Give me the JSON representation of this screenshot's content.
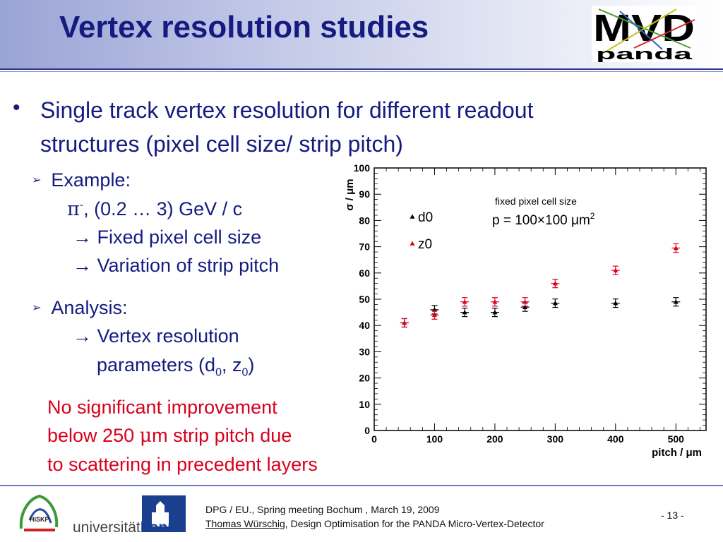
{
  "slide": {
    "title": "Vertex resolution studies",
    "bullet_char": "•",
    "main_line1": "Single track vertex resolution for different readout",
    "main_line2": "structures (pixel cell size/ strip pitch)",
    "example_label": "Example:",
    "example_particle_sym": "π",
    "example_particle_sup": "-",
    "example_particle_rest": ", (0.2 … 3) GeV / c",
    "example_arrow1": "→ Fixed pixel cell size",
    "example_arrow2": "→ Variation of strip pitch",
    "analysis_label": "Analysis:",
    "analysis_arrow1": "→ Vertex resolution",
    "analysis_line2_pre": "parameters (d",
    "analysis_sub0a": "0",
    "analysis_mid": ", z",
    "analysis_sub0b": "0",
    "analysis_end": ")",
    "conclusion_line1": "No significant improvement",
    "conclusion_line2_pre": "below 250 ",
    "conclusion_mu": "μ",
    "conclusion_line2_post": "m strip pitch due",
    "conclusion_line3": "to scattering in precedent layers"
  },
  "logos": {
    "mvd_text": "MVD",
    "panda_text": "panda",
    "hiskp_text": "HISKP",
    "bonn_text_pre": "universität",
    "bonn_text_post": "bonn"
  },
  "footer": {
    "line1": "DPG / EU., Spring meeting Bochum , March 19, 2009",
    "author": "Thomas Würschig,",
    "line2_rest": " Design Optimisation for the PANDA Micro-Vertex-Detector",
    "page_number": "- 13 -"
  },
  "colors": {
    "title": "#151b80",
    "conclusion": "#d8001c",
    "d0_marker": "#000000",
    "z0_marker": "#e0001a"
  },
  "chart_data": {
    "type": "scatter",
    "title": "",
    "xlabel": "pitch / μm",
    "ylabel": "σ / μm",
    "xlim": [
      0,
      550
    ],
    "ylim": [
      0,
      100
    ],
    "xticks": [
      0,
      100,
      200,
      300,
      400,
      500
    ],
    "yticks": [
      0,
      10,
      20,
      30,
      40,
      50,
      60,
      70,
      80,
      90,
      100
    ],
    "annotation_line1": "fixed pixel cell size",
    "annotation_line2": "p = 100×100 μm",
    "annotation_line2_sup": "2",
    "series": [
      {
        "name": "d0",
        "marker": "triangle",
        "color": "#000000",
        "x": [
          50,
          100,
          150,
          200,
          250,
          300,
          400,
          500
        ],
        "y": [
          41,
          46,
          45,
          45,
          47,
          48.5,
          48.5,
          49
        ]
      },
      {
        "name": "z0",
        "marker": "triangle",
        "color": "#e0001a",
        "x": [
          50,
          100,
          150,
          200,
          250,
          300,
          400,
          500
        ],
        "y": [
          41,
          44,
          49,
          49,
          49,
          56,
          61,
          69.5
        ]
      }
    ]
  }
}
